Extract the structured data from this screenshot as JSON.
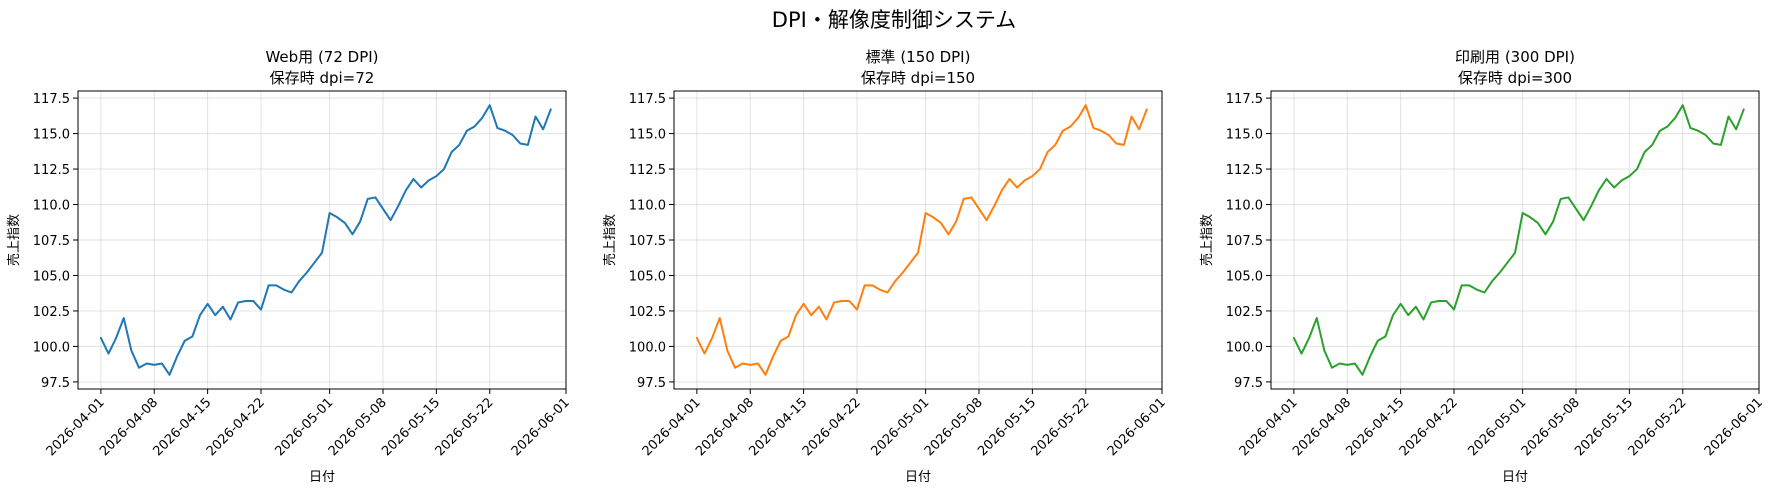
{
  "figure": {
    "suptitle": "DPI・解像度制御システム"
  },
  "chart_data": [
    {
      "type": "line",
      "title": "Web用 (72 DPI)",
      "subtitle": "保存時 dpi=72",
      "xlabel": "日付",
      "ylabel": "売上指数",
      "color": "#1f77b4",
      "grid": true,
      "xlim": [
        "2026-03-29",
        "2026-06-01"
      ],
      "ylim": [
        97.0,
        118.0
      ],
      "xticks": [
        "2026-04-01",
        "2026-04-08",
        "2026-04-15",
        "2026-04-22",
        "2026-05-01",
        "2026-05-08",
        "2026-05-15",
        "2026-05-22",
        "2026-06-01"
      ],
      "yticks": [
        "97.5",
        "100.0",
        "102.5",
        "105.0",
        "107.5",
        "110.0",
        "112.5",
        "115.0",
        "117.5"
      ],
      "x_start": "2026-04-01",
      "values": [
        100.6,
        99.5,
        100.6,
        102.0,
        99.7,
        98.5,
        98.8,
        98.7,
        98.8,
        98.0,
        99.3,
        100.4,
        100.7,
        102.2,
        103.0,
        102.2,
        102.8,
        101.9,
        103.1,
        103.2,
        103.2,
        102.6,
        104.3,
        104.3,
        104.0,
        103.8,
        104.6,
        105.2,
        105.9,
        106.6,
        109.4,
        109.1,
        108.7,
        107.9,
        108.8,
        110.4,
        110.5,
        109.7,
        108.9,
        109.9,
        111.0,
        111.8,
        111.2,
        111.7,
        112.0,
        112.5,
        113.7,
        114.2,
        115.2,
        115.5,
        116.1,
        117.0,
        115.4,
        115.2,
        114.9,
        114.3,
        114.2,
        116.2,
        115.3,
        116.7
      ]
    },
    {
      "type": "line",
      "title": "標準 (150 DPI)",
      "subtitle": "保存時 dpi=150",
      "xlabel": "日付",
      "ylabel": "売上指数",
      "color": "#ff7f0e",
      "grid": true,
      "xlim": [
        "2026-03-29",
        "2026-06-01"
      ],
      "ylim": [
        97.0,
        118.0
      ],
      "xticks": [
        "2026-04-01",
        "2026-04-08",
        "2026-04-15",
        "2026-04-22",
        "2026-05-01",
        "2026-05-08",
        "2026-05-15",
        "2026-05-22",
        "2026-06-01"
      ],
      "yticks": [
        "97.5",
        "100.0",
        "102.5",
        "105.0",
        "107.5",
        "110.0",
        "112.5",
        "115.0",
        "117.5"
      ],
      "x_start": "2026-04-01",
      "values": [
        100.6,
        99.5,
        100.6,
        102.0,
        99.7,
        98.5,
        98.8,
        98.7,
        98.8,
        98.0,
        99.3,
        100.4,
        100.7,
        102.2,
        103.0,
        102.2,
        102.8,
        101.9,
        103.1,
        103.2,
        103.2,
        102.6,
        104.3,
        104.3,
        104.0,
        103.8,
        104.6,
        105.2,
        105.9,
        106.6,
        109.4,
        109.1,
        108.7,
        107.9,
        108.8,
        110.4,
        110.5,
        109.7,
        108.9,
        109.9,
        111.0,
        111.8,
        111.2,
        111.7,
        112.0,
        112.5,
        113.7,
        114.2,
        115.2,
        115.5,
        116.1,
        117.0,
        115.4,
        115.2,
        114.9,
        114.3,
        114.2,
        116.2,
        115.3,
        116.7
      ]
    },
    {
      "type": "line",
      "title": "印刷用 (300 DPI)",
      "subtitle": "保存時 dpi=300",
      "xlabel": "日付",
      "ylabel": "売上指数",
      "color": "#2ca02c",
      "grid": true,
      "xlim": [
        "2026-03-29",
        "2026-06-01"
      ],
      "ylim": [
        97.0,
        118.0
      ],
      "xticks": [
        "2026-04-01",
        "2026-04-08",
        "2026-04-15",
        "2026-04-22",
        "2026-05-01",
        "2026-05-08",
        "2026-05-15",
        "2026-05-22",
        "2026-06-01"
      ],
      "yticks": [
        "97.5",
        "100.0",
        "102.5",
        "105.0",
        "107.5",
        "110.0",
        "112.5",
        "115.0",
        "117.5"
      ],
      "x_start": "2026-04-01",
      "values": [
        100.6,
        99.5,
        100.6,
        102.0,
        99.7,
        98.5,
        98.8,
        98.7,
        98.8,
        98.0,
        99.3,
        100.4,
        100.7,
        102.2,
        103.0,
        102.2,
        102.8,
        101.9,
        103.1,
        103.2,
        103.2,
        102.6,
        104.3,
        104.3,
        104.0,
        103.8,
        104.6,
        105.2,
        105.9,
        106.6,
        109.4,
        109.1,
        108.7,
        107.9,
        108.8,
        110.4,
        110.5,
        109.7,
        108.9,
        109.9,
        111.0,
        111.8,
        111.2,
        111.7,
        112.0,
        112.5,
        113.7,
        114.2,
        115.2,
        115.5,
        116.1,
        117.0,
        115.4,
        115.2,
        114.9,
        114.3,
        114.2,
        116.2,
        115.3,
        116.7
      ]
    }
  ]
}
